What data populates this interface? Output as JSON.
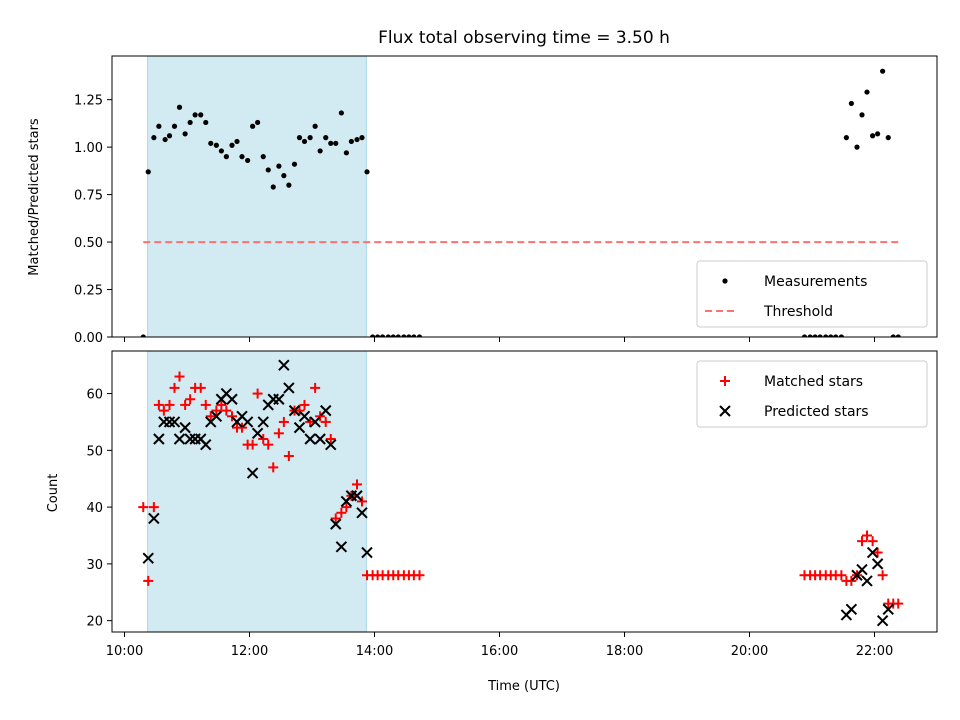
{
  "chart_data": [
    {
      "type": "scatter",
      "title": "Flux total observing time = 3.50 h",
      "xlabel": "",
      "ylabel": "Matched/Predicted stars",
      "xlim_hours": [
        9.8,
        23.0
      ],
      "ylim": [
        0,
        1.48
      ],
      "yticks": [
        "0.00",
        "0.25",
        "0.50",
        "0.75",
        "1.00",
        "1.25"
      ],
      "xticks": [
        "10:00",
        "12:00",
        "14:00",
        "16:00",
        "18:00",
        "20:00",
        "22:00"
      ],
      "shaded_span_hours": [
        10.37,
        13.87
      ],
      "shade_color": "#add8e6",
      "legend_position": "lower right",
      "series": [
        {
          "name": "Measurements",
          "marker": "dot",
          "color": "#000000",
          "points": [
            [
              10.3,
              0.0
            ],
            [
              10.38,
              0.87
            ],
            [
              10.47,
              1.05
            ],
            [
              10.55,
              1.11
            ],
            [
              10.65,
              1.04
            ],
            [
              10.72,
              1.06
            ],
            [
              10.8,
              1.11
            ],
            [
              10.88,
              1.21
            ],
            [
              10.97,
              1.07
            ],
            [
              11.05,
              1.13
            ],
            [
              11.13,
              1.17
            ],
            [
              11.22,
              1.17
            ],
            [
              11.3,
              1.13
            ],
            [
              11.38,
              1.02
            ],
            [
              11.47,
              1.01
            ],
            [
              11.55,
              0.98
            ],
            [
              11.63,
              0.95
            ],
            [
              11.72,
              1.01
            ],
            [
              11.8,
              1.03
            ],
            [
              11.88,
              0.95
            ],
            [
              11.97,
              0.93
            ],
            [
              12.05,
              1.11
            ],
            [
              12.13,
              1.13
            ],
            [
              12.22,
              0.95
            ],
            [
              12.3,
              0.88
            ],
            [
              12.38,
              0.79
            ],
            [
              12.47,
              0.9
            ],
            [
              12.55,
              0.85
            ],
            [
              12.63,
              0.8
            ],
            [
              12.72,
              0.91
            ],
            [
              12.8,
              1.05
            ],
            [
              12.88,
              1.03
            ],
            [
              12.97,
              1.05
            ],
            [
              13.05,
              1.11
            ],
            [
              13.13,
              0.98
            ],
            [
              13.22,
              1.05
            ],
            [
              13.3,
              1.02
            ],
            [
              13.38,
              1.02
            ],
            [
              13.47,
              1.18
            ],
            [
              13.55,
              0.97
            ],
            [
              13.63,
              1.03
            ],
            [
              13.72,
              1.04
            ],
            [
              13.8,
              1.05
            ],
            [
              13.88,
              0.87
            ],
            [
              13.97,
              0.0
            ],
            [
              14.05,
              0.0
            ],
            [
              14.13,
              0.0
            ],
            [
              14.22,
              0.0
            ],
            [
              14.3,
              0.0
            ],
            [
              14.38,
              0.0
            ],
            [
              14.47,
              0.0
            ],
            [
              14.55,
              0.0
            ],
            [
              14.63,
              0.0
            ],
            [
              14.72,
              0.0
            ],
            [
              20.88,
              0.0
            ],
            [
              20.97,
              0.0
            ],
            [
              21.05,
              0.0
            ],
            [
              21.13,
              0.0
            ],
            [
              21.22,
              0.0
            ],
            [
              21.3,
              0.0
            ],
            [
              21.38,
              0.0
            ],
            [
              21.47,
              0.0
            ],
            [
              21.55,
              1.05
            ],
            [
              21.63,
              1.23
            ],
            [
              21.72,
              1.0
            ],
            [
              21.8,
              1.17
            ],
            [
              21.88,
              1.29
            ],
            [
              21.97,
              1.06
            ],
            [
              22.05,
              1.07
            ],
            [
              22.13,
              1.4
            ],
            [
              22.22,
              1.05
            ],
            [
              22.3,
              0.0
            ],
            [
              22.38,
              0.0
            ]
          ]
        },
        {
          "name": "Threshold",
          "marker": "dashed-line",
          "color": "#ff7070",
          "x_range_hours": [
            10.3,
            22.38
          ],
          "value": 0.5
        }
      ]
    },
    {
      "type": "scatter",
      "title": "",
      "xlabel": "Time (UTC)",
      "ylabel": "Count",
      "xlim_hours": [
        9.8,
        23.0
      ],
      "ylim": [
        18,
        67.5
      ],
      "yticks": [
        "20",
        "30",
        "40",
        "50",
        "60"
      ],
      "xticks": [
        "10:00",
        "12:00",
        "14:00",
        "16:00",
        "18:00",
        "20:00",
        "22:00"
      ],
      "shaded_span_hours": [
        10.37,
        13.87
      ],
      "shade_color": "#add8e6",
      "legend_position": "upper right",
      "series": [
        {
          "name": "Matched stars",
          "marker": "plus",
          "color": "#ff0000",
          "points": [
            [
              10.3,
              40
            ],
            [
              10.38,
              27
            ],
            [
              10.47,
              40
            ],
            [
              10.55,
              58
            ],
            [
              10.63,
              57
            ],
            [
              10.72,
              58
            ],
            [
              10.8,
              61
            ],
            [
              10.88,
              63
            ],
            [
              10.97,
              58
            ],
            [
              11.05,
              59
            ],
            [
              11.13,
              61
            ],
            [
              11.22,
              61
            ],
            [
              11.3,
              58
            ],
            [
              11.38,
              56
            ],
            [
              11.47,
              57
            ],
            [
              11.55,
              58
            ],
            [
              11.63,
              57
            ],
            [
              11.72,
              56
            ],
            [
              11.8,
              54
            ],
            [
              11.88,
              54
            ],
            [
              11.97,
              51
            ],
            [
              12.05,
              51
            ],
            [
              12.13,
              60
            ],
            [
              12.22,
              52
            ],
            [
              12.3,
              51
            ],
            [
              12.38,
              47
            ],
            [
              12.47,
              53
            ],
            [
              12.55,
              55
            ],
            [
              12.63,
              49
            ],
            [
              12.72,
              57
            ],
            [
              12.8,
              57
            ],
            [
              12.88,
              58
            ],
            [
              12.97,
              55
            ],
            [
              13.05,
              61
            ],
            [
              13.13,
              56
            ],
            [
              13.22,
              55
            ],
            [
              13.3,
              52
            ],
            [
              13.38,
              38
            ],
            [
              13.47,
              39
            ],
            [
              13.55,
              40
            ],
            [
              13.63,
              42
            ],
            [
              13.72,
              44
            ],
            [
              13.8,
              41
            ],
            [
              13.88,
              28
            ],
            [
              13.97,
              28
            ],
            [
              14.05,
              28
            ],
            [
              14.13,
              28
            ],
            [
              14.22,
              28
            ],
            [
              14.3,
              28
            ],
            [
              14.38,
              28
            ],
            [
              14.47,
              28
            ],
            [
              14.55,
              28
            ],
            [
              14.63,
              28
            ],
            [
              14.72,
              28
            ],
            [
              20.88,
              28
            ],
            [
              20.97,
              28
            ],
            [
              21.05,
              28
            ],
            [
              21.13,
              28
            ],
            [
              21.22,
              28
            ],
            [
              21.3,
              28
            ],
            [
              21.38,
              28
            ],
            [
              21.47,
              28
            ],
            [
              21.55,
              27
            ],
            [
              21.63,
              27
            ],
            [
              21.72,
              28
            ],
            [
              21.8,
              34
            ],
            [
              21.88,
              35
            ],
            [
              21.97,
              34
            ],
            [
              22.05,
              32
            ],
            [
              22.13,
              28
            ],
            [
              22.22,
              23
            ],
            [
              22.3,
              23
            ],
            [
              22.38,
              23
            ]
          ]
        },
        {
          "name": "Predicted stars",
          "marker": "x",
          "color": "#000000",
          "points": [
            [
              10.38,
              31
            ],
            [
              10.47,
              38
            ],
            [
              10.55,
              52
            ],
            [
              10.63,
              55
            ],
            [
              10.72,
              55
            ],
            [
              10.8,
              55
            ],
            [
              10.88,
              52
            ],
            [
              10.97,
              54
            ],
            [
              11.05,
              52
            ],
            [
              11.13,
              52
            ],
            [
              11.22,
              52
            ],
            [
              11.3,
              51
            ],
            [
              11.38,
              55
            ],
            [
              11.47,
              56
            ],
            [
              11.55,
              59
            ],
            [
              11.63,
              60
            ],
            [
              11.72,
              59
            ],
            [
              11.8,
              55
            ],
            [
              11.88,
              56
            ],
            [
              11.97,
              55
            ],
            [
              12.05,
              46
            ],
            [
              12.13,
              53
            ],
            [
              12.22,
              55
            ],
            [
              12.3,
              58
            ],
            [
              12.38,
              59
            ],
            [
              12.47,
              59
            ],
            [
              12.55,
              65
            ],
            [
              12.63,
              61
            ],
            [
              12.72,
              57
            ],
            [
              12.8,
              54
            ],
            [
              12.88,
              56
            ],
            [
              12.97,
              52
            ],
            [
              13.05,
              55
            ],
            [
              13.13,
              52
            ],
            [
              13.22,
              57
            ],
            [
              13.3,
              51
            ],
            [
              13.38,
              37
            ],
            [
              13.47,
              33
            ],
            [
              13.55,
              41
            ],
            [
              13.63,
              42
            ],
            [
              13.72,
              42
            ],
            [
              13.8,
              39
            ],
            [
              13.88,
              32
            ],
            [
              21.55,
              21
            ],
            [
              21.63,
              22
            ],
            [
              21.72,
              28
            ],
            [
              21.8,
              29
            ],
            [
              21.88,
              27
            ],
            [
              21.97,
              32
            ],
            [
              22.05,
              30
            ],
            [
              22.13,
              20
            ],
            [
              22.22,
              22
            ]
          ]
        }
      ]
    }
  ]
}
